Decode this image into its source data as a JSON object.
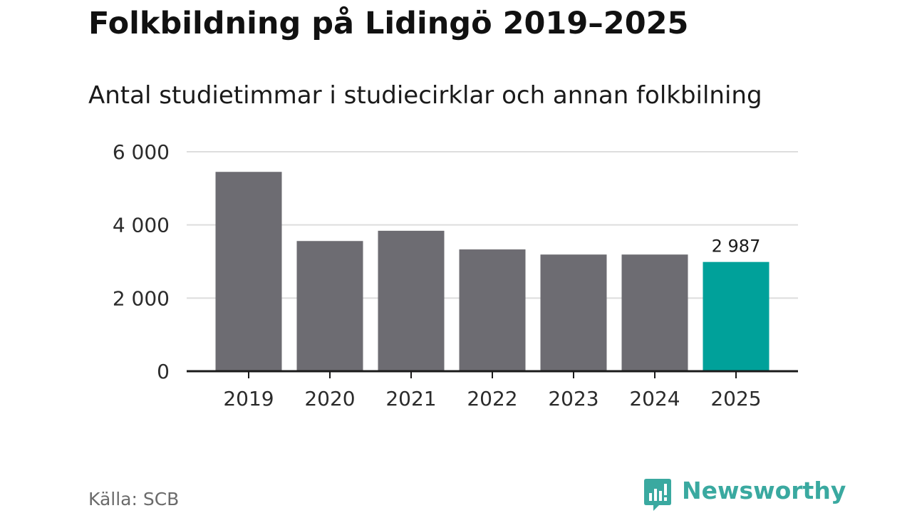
{
  "title": "Folkbildning på Lidingö 2019–2025",
  "subtitle": "Antal studietimmar i studiecirklar och annan folkbilning",
  "source": "Källa: SCB",
  "logo_text": "Newsworthy",
  "colors": {
    "bar_default": "#6d6c72",
    "bar_highlight": "#00a19a",
    "grid": "#dddddd",
    "axis": "#1a1a1a",
    "logo": "#3aa9a0"
  },
  "chart_data": {
    "type": "bar",
    "title": "Folkbildning på Lidingö 2019–2025",
    "subtitle": "Antal studietimmar i studiecirklar och annan folkbilning",
    "xlabel": "",
    "ylabel": "",
    "categories": [
      "2019",
      "2020",
      "2021",
      "2022",
      "2023",
      "2024",
      "2025"
    ],
    "values": [
      5450,
      3560,
      3840,
      3330,
      3190,
      3190,
      2987
    ],
    "highlight_index": 6,
    "highlight_label": "2 987",
    "ylim": [
      0,
      6000
    ],
    "yticks": [
      0,
      2000,
      4000,
      6000
    ],
    "ytick_labels": [
      "0",
      "2 000",
      "4 000",
      "6 000"
    ],
    "grid": true,
    "legend": "none"
  }
}
